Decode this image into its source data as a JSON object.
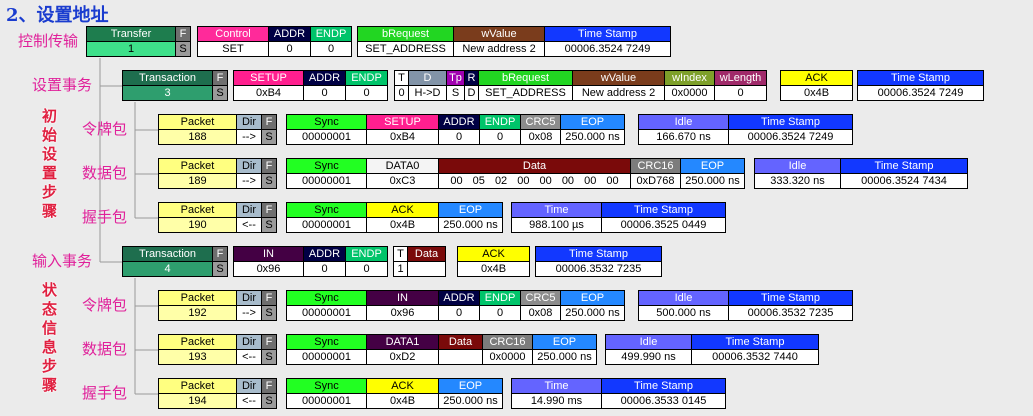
{
  "title": "2、设置地址",
  "steps": [
    "初始设置步骤",
    "状态信息步骤"
  ],
  "rows": [
    {
      "label": "控制传输",
      "groups": [
        [
          {
            "header": "Transfer",
            "value": "1",
            "color": "#1e7d4e",
            "fill": "#3ee08a"
          },
          {
            "header": "F",
            "value": "S",
            "color": "#6e6e6e",
            "fill": "#9a9a9a"
          }
        ],
        [
          {
            "header": "Control",
            "value": "SET",
            "color": "#ff2a9a"
          },
          {
            "header": "ADDR",
            "value": "0",
            "color": "#000044"
          },
          {
            "header": "ENDP",
            "value": "0",
            "color": "#00c46a"
          }
        ],
        [
          {
            "header": "bRequest",
            "value": "SET_ADDRESS",
            "color": "#22d622"
          },
          {
            "header": "wValue",
            "value": "New address 2",
            "color": "#7a3c1c"
          },
          {
            "header": "Time Stamp",
            "value": "00006.3524 7249",
            "color": "#1238ff"
          }
        ]
      ]
    },
    {
      "label": "设置事务",
      "groups": [
        [
          {
            "header": "Transaction",
            "value": "3",
            "color": "#1e6e4e",
            "fill": "#2e9e6e"
          },
          {
            "header": "F",
            "value": "S",
            "color": "#6e6e6e",
            "fill": "#9a9a9a"
          }
        ],
        [
          {
            "header": "SETUP",
            "value": "0xB4",
            "color": "#ff1f8f"
          },
          {
            "header": "ADDR",
            "value": "0",
            "color": "#000044"
          },
          {
            "header": "ENDP",
            "value": "0",
            "color": "#00c46a"
          }
        ],
        [
          {
            "header": "T",
            "value": "0",
            "color": "#ffffff"
          },
          {
            "header": "D",
            "value": "H->D",
            "color": "#8294a8"
          },
          {
            "header": "Tp",
            "value": "S",
            "color": "#a000b0"
          },
          {
            "header": "R",
            "value": "D",
            "color": "#000044"
          },
          {
            "header": "bRequest",
            "value": "SET_ADDRESS",
            "color": "#22d622"
          },
          {
            "header": "wValue",
            "value": "New address 2",
            "color": "#7a3c1c"
          },
          {
            "header": "wIndex",
            "value": "0x0000",
            "color": "#7ea02a"
          },
          {
            "header": "wLength",
            "value": "0",
            "color": "#a02a6a"
          }
        ],
        [
          {
            "header": "ACK",
            "value": "0x4B",
            "color": "#ffff00"
          }
        ],
        [
          {
            "header": "Time Stamp",
            "value": "00006.3524 7249",
            "color": "#1238ff"
          }
        ]
      ]
    },
    {
      "label": "令牌包",
      "groups": [
        [
          {
            "header": "Packet",
            "value": "188",
            "color": "#ffff80",
            "fill": "#ffffa8"
          },
          {
            "header": "Dir",
            "value": "-->",
            "color": "#a8bccc"
          },
          {
            "header": "F",
            "value": "S",
            "color": "#6e6e6e",
            "fill": "#9a9a9a"
          }
        ],
        [
          {
            "header": "Sync",
            "value": "00000001",
            "color": "#22ff22"
          },
          {
            "header": "SETUP",
            "value": "0xB4",
            "color": "#ff1f8f"
          },
          {
            "header": "ADDR",
            "value": "0",
            "color": "#000044"
          },
          {
            "header": "ENDP",
            "value": "0",
            "color": "#00c46a"
          },
          {
            "header": "CRC5",
            "value": "0x08",
            "color": "#8c8c8c"
          },
          {
            "header": "EOP",
            "value": "250.000 ns",
            "color": "#2488ff"
          }
        ],
        [
          {
            "header": "Idle",
            "value": "166.670 ns",
            "color": "#6464ff"
          },
          {
            "header": "Time Stamp",
            "value": "00006.3524 7249",
            "color": "#1238ff"
          }
        ]
      ]
    },
    {
      "label": "数据包",
      "groups": [
        [
          {
            "header": "Packet",
            "value": "189",
            "color": "#ffff80",
            "fill": "#ffffa8"
          },
          {
            "header": "Dir",
            "value": "-->",
            "color": "#a8bccc"
          },
          {
            "header": "F",
            "value": "S",
            "color": "#6e6e6e",
            "fill": "#9a9a9a"
          }
        ],
        [
          {
            "header": "Sync",
            "value": "00000001",
            "color": "#22ff22"
          },
          {
            "header": "DATA0",
            "value": "0xC3",
            "color": "#f4f4f4"
          },
          {
            "header": "Data",
            "value": "00 05 02 00 00 00 00 00",
            "color": "#7a0a0a"
          },
          {
            "header": "CRC16",
            "value": "0xD768",
            "color": "#7c7c7c"
          },
          {
            "header": "EOP",
            "value": "250.000 ns",
            "color": "#2488ff"
          }
        ],
        [
          {
            "header": "Idle",
            "value": "333.320 ns",
            "color": "#6464ff"
          },
          {
            "header": "Time Stamp",
            "value": "00006.3524 7434",
            "color": "#1238ff"
          }
        ]
      ]
    },
    {
      "label": "握手包",
      "groups": [
        [
          {
            "header": "Packet",
            "value": "190",
            "color": "#ffff80",
            "fill": "#ffffa8"
          },
          {
            "header": "Dir",
            "value": "<--",
            "color": "#a8bccc"
          },
          {
            "header": "F",
            "value": "S",
            "color": "#6e6e6e",
            "fill": "#9a9a9a"
          }
        ],
        [
          {
            "header": "Sync",
            "value": "00000001",
            "color": "#22ff22"
          },
          {
            "header": "ACK",
            "value": "0x4B",
            "color": "#ffff00"
          },
          {
            "header": "EOP",
            "value": "250.000 ns",
            "color": "#2488ff"
          }
        ],
        [
          {
            "header": "Time",
            "value": "988.100 µs",
            "color": "#6464ff"
          },
          {
            "header": "Time Stamp",
            "value": "00006.3525 0449",
            "color": "#1238ff"
          }
        ]
      ]
    },
    {
      "label": "输入事务",
      "groups": [
        [
          {
            "header": "Transaction",
            "value": "4",
            "color": "#1e6e4e",
            "fill": "#2e9e6e"
          },
          {
            "header": "F",
            "value": "S",
            "color": "#6e6e6e",
            "fill": "#9a9a9a"
          }
        ],
        [
          {
            "header": "IN",
            "value": "0x96",
            "color": "#440044"
          },
          {
            "header": "ADDR",
            "value": "0",
            "color": "#000044"
          },
          {
            "header": "ENDP",
            "value": "0",
            "color": "#00c46a"
          }
        ],
        [
          {
            "header": "T",
            "value": "1",
            "color": "#ffffff"
          },
          {
            "header": "Data",
            "color": "#7a0a0a"
          }
        ],
        [
          {
            "header": "ACK",
            "value": "0x4B",
            "color": "#ffff00"
          }
        ],
        [
          {
            "header": "Time Stamp",
            "value": "00006.3532 7235",
            "color": "#1238ff"
          }
        ]
      ]
    },
    {
      "label": "令牌包",
      "groups": [
        [
          {
            "header": "Packet",
            "value": "192",
            "color": "#ffff80",
            "fill": "#ffffa8"
          },
          {
            "header": "Dir",
            "value": "-->",
            "color": "#a8bccc"
          },
          {
            "header": "F",
            "value": "S",
            "color": "#6e6e6e",
            "fill": "#9a9a9a"
          }
        ],
        [
          {
            "header": "Sync",
            "value": "00000001",
            "color": "#22ff22"
          },
          {
            "header": "IN",
            "value": "0x96",
            "color": "#440044"
          },
          {
            "header": "ADDR",
            "value": "0",
            "color": "#000044"
          },
          {
            "header": "ENDP",
            "value": "0",
            "color": "#00c46a"
          },
          {
            "header": "CRC5",
            "value": "0x08",
            "color": "#8c8c8c"
          },
          {
            "header": "EOP",
            "value": "250.000 ns",
            "color": "#2488ff"
          }
        ],
        [
          {
            "header": "Idle",
            "value": "500.000 ns",
            "color": "#6464ff"
          },
          {
            "header": "Time Stamp",
            "value": "00006.3532 7235",
            "color": "#1238ff"
          }
        ]
      ]
    },
    {
      "label": "数据包",
      "groups": [
        [
          {
            "header": "Packet",
            "value": "193",
            "color": "#ffff80",
            "fill": "#ffffa8"
          },
          {
            "header": "Dir",
            "value": "<--",
            "color": "#a8bccc"
          },
          {
            "header": "F",
            "value": "S",
            "color": "#6e6e6e",
            "fill": "#9a9a9a"
          }
        ],
        [
          {
            "header": "Sync",
            "value": "00000001",
            "color": "#22ff22"
          },
          {
            "header": "DATA1",
            "value": "0xD2",
            "color": "#440044"
          },
          {
            "header": "Data",
            "color": "#7a0a0a"
          },
          {
            "header": "CRC16",
            "value": "0x0000",
            "color": "#7c7c7c"
          },
          {
            "header": "EOP",
            "value": "250.000 ns",
            "color": "#2488ff"
          }
        ],
        [
          {
            "header": "Idle",
            "value": "499.990 ns",
            "color": "#6464ff"
          },
          {
            "header": "Time Stamp",
            "value": "00006.3532 7440",
            "color": "#1238ff"
          }
        ]
      ]
    },
    {
      "label": "握手包",
      "groups": [
        [
          {
            "header": "Packet",
            "value": "194",
            "color": "#ffff80",
            "fill": "#ffffa8"
          },
          {
            "header": "Dir",
            "value": "<--",
            "color": "#a8bccc"
          },
          {
            "header": "F",
            "value": "S",
            "color": "#6e6e6e",
            "fill": "#9a9a9a"
          }
        ],
        [
          {
            "header": "Sync",
            "value": "00000001",
            "color": "#22ff22"
          },
          {
            "header": "ACK",
            "value": "0x4B",
            "color": "#ffff00"
          },
          {
            "header": "EOP",
            "value": "250.000 ns",
            "color": "#2488ff"
          }
        ],
        [
          {
            "header": "Time",
            "value": "14.990 ms",
            "color": "#6464ff"
          },
          {
            "header": "Time Stamp",
            "value": "00006.3533 0145",
            "color": "#1238ff"
          }
        ]
      ]
    }
  ]
}
